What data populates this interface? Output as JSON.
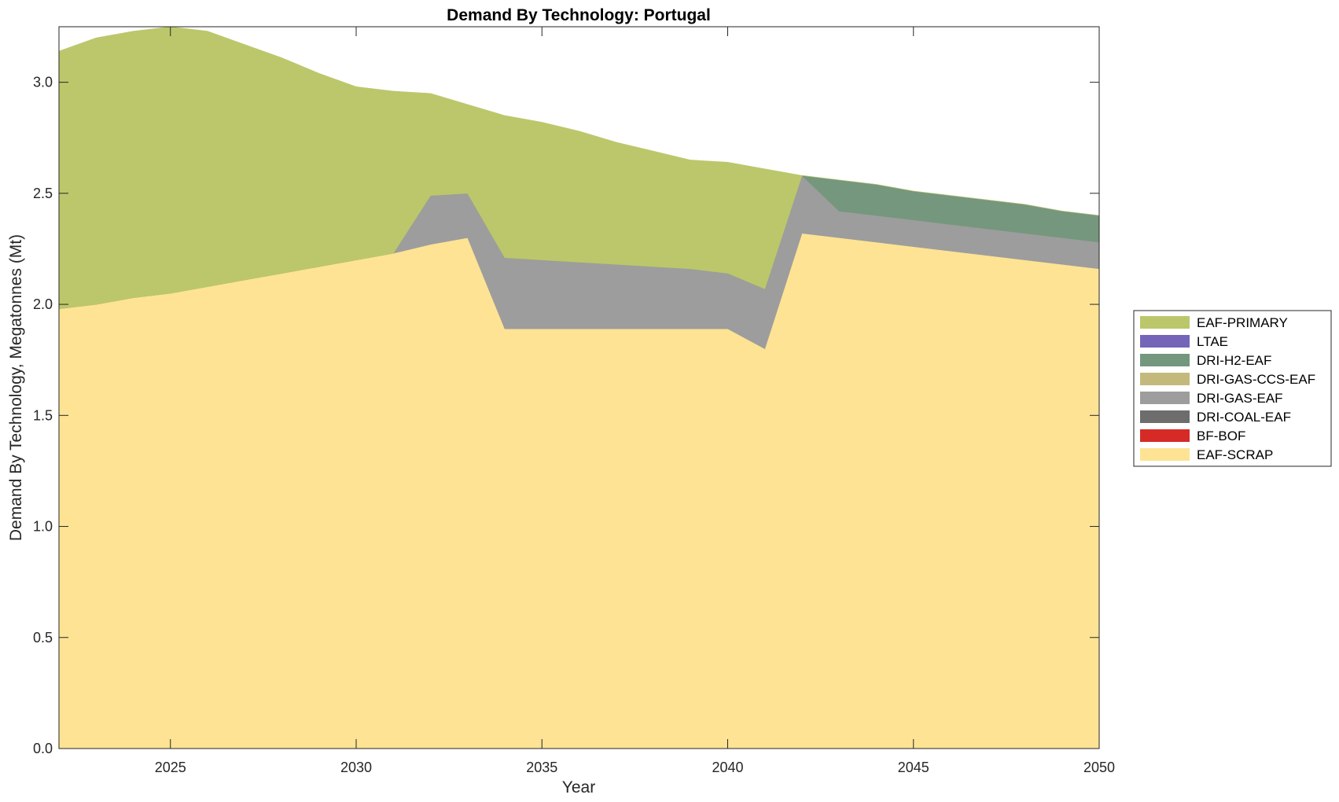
{
  "chart_data": {
    "type": "area",
    "stacked": true,
    "title": "Demand By Technology: Portugal",
    "xlabel": "Year",
    "ylabel": "Demand By Technology, Megatonnes (Mt)",
    "xlim": [
      2022,
      2050
    ],
    "ylim": [
      0,
      3.25
    ],
    "xticks": [
      2025,
      2030,
      2035,
      2040,
      2045,
      2050
    ],
    "yticks": [
      0.0,
      0.5,
      1.0,
      1.5,
      2.0,
      2.5,
      3.0
    ],
    "grid": false,
    "legend_position": "right",
    "x": [
      2022,
      2023,
      2024,
      2025,
      2026,
      2027,
      2028,
      2029,
      2030,
      2031,
      2032,
      2033,
      2034,
      2035,
      2036,
      2037,
      2038,
      2039,
      2040,
      2041,
      2042,
      2043,
      2044,
      2045,
      2046,
      2047,
      2048,
      2049,
      2050
    ],
    "series": [
      {
        "name": "EAF-SCRAP",
        "color": "#FDE393",
        "values": [
          1.98,
          2.0,
          2.03,
          2.05,
          2.08,
          2.11,
          2.14,
          2.17,
          2.2,
          2.23,
          2.27,
          2.3,
          1.89,
          1.89,
          1.89,
          1.89,
          1.89,
          1.89,
          1.89,
          1.8,
          2.32,
          2.3,
          2.28,
          2.26,
          2.24,
          2.22,
          2.2,
          2.18,
          2.16
        ]
      },
      {
        "name": "BF-BOF",
        "color": "#D62A27",
        "values": [
          0,
          0,
          0,
          0,
          0,
          0,
          0,
          0,
          0,
          0,
          0,
          0,
          0,
          0,
          0,
          0,
          0,
          0,
          0,
          0,
          0,
          0,
          0,
          0,
          0,
          0,
          0,
          0,
          0
        ]
      },
      {
        "name": "DRI-COAL-EAF",
        "color": "#6D6D6D",
        "values": [
          0,
          0,
          0,
          0,
          0,
          0,
          0,
          0,
          0,
          0,
          0,
          0,
          0,
          0,
          0,
          0,
          0,
          0,
          0,
          0,
          0,
          0,
          0,
          0,
          0,
          0,
          0,
          0,
          0
        ]
      },
      {
        "name": "DRI-GAS-EAF",
        "color": "#9D9D9D",
        "values": [
          0,
          0,
          0,
          0,
          0,
          0,
          0,
          0,
          0,
          0,
          0.22,
          0.2,
          0.32,
          0.31,
          0.3,
          0.29,
          0.28,
          0.27,
          0.25,
          0.27,
          0.26,
          0.12,
          0.12,
          0.12,
          0.12,
          0.12,
          0.12,
          0.12,
          0.12
        ]
      },
      {
        "name": "DRI-GAS-CCS-EAF",
        "color": "#C4B97C",
        "values": [
          0,
          0,
          0,
          0,
          0,
          0,
          0,
          0,
          0,
          0,
          0,
          0,
          0,
          0,
          0,
          0,
          0,
          0,
          0,
          0,
          0,
          0,
          0,
          0,
          0,
          0,
          0,
          0,
          0
        ]
      },
      {
        "name": "DRI-H2-EAF",
        "color": "#75977D",
        "values": [
          0,
          0,
          0,
          0,
          0,
          0,
          0,
          0,
          0,
          0,
          0,
          0,
          0,
          0,
          0,
          0,
          0,
          0,
          0,
          0,
          0,
          0.14,
          0.14,
          0.13,
          0.13,
          0.13,
          0.13,
          0.12,
          0.12
        ]
      },
      {
        "name": "LTAE",
        "color": "#7565B9",
        "values": [
          0,
          0,
          0,
          0,
          0,
          0,
          0,
          0,
          0,
          0,
          0,
          0,
          0,
          0,
          0,
          0,
          0,
          0,
          0,
          0,
          0,
          0,
          0,
          0,
          0,
          0,
          0,
          0,
          0
        ]
      },
      {
        "name": "EAF-PRIMARY",
        "color": "#BCC76B",
        "values": [
          1.16,
          1.2,
          1.2,
          1.2,
          1.15,
          1.06,
          0.97,
          0.87,
          0.78,
          0.73,
          0.46,
          0.4,
          0.64,
          0.62,
          0.59,
          0.55,
          0.52,
          0.49,
          0.5,
          0.54,
          0,
          0,
          0,
          0,
          0,
          0,
          0,
          0,
          0
        ]
      }
    ],
    "legend_order": [
      "EAF-PRIMARY",
      "LTAE",
      "DRI-H2-EAF",
      "DRI-GAS-CCS-EAF",
      "DRI-GAS-EAF",
      "DRI-COAL-EAF",
      "BF-BOF",
      "EAF-SCRAP"
    ]
  }
}
